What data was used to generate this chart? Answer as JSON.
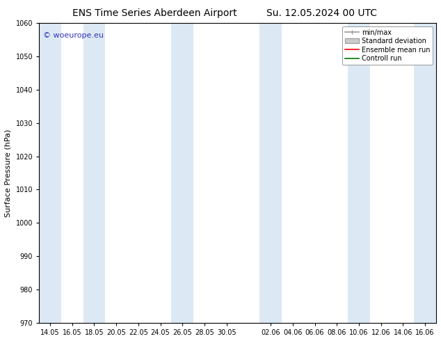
{
  "title_left": "ENS Time Series Aberdeen Airport",
  "title_right": "Su. 12.05.2024 00 UTC",
  "ylabel": "Surface Pressure (hPa)",
  "ylim": [
    970,
    1060
  ],
  "yticks": [
    970,
    980,
    990,
    1000,
    1010,
    1020,
    1030,
    1040,
    1050,
    1060
  ],
  "xtick_labels_may": [
    "14.05",
    "16.05",
    "18.05",
    "20.05",
    "22.05",
    "24.05",
    "26.05",
    "28.05",
    "30.05"
  ],
  "xtick_labels_jun": [
    "02.06",
    "04.06",
    "06.06",
    "08.06",
    "10.06",
    "12.06",
    "14.06",
    "16.06"
  ],
  "shaded_band_color": "#dce9f5",
  "watermark_text": "© woeurope.eu",
  "watermark_color": "#3333bb",
  "font_size_title": 10,
  "font_size_labels": 8,
  "font_size_ticks": 7,
  "font_size_watermark": 8,
  "font_size_legend": 7,
  "background_color": "#ffffff",
  "plot_bg_color": "#ffffff",
  "legend_gray_line": "#999999",
  "legend_gray_fill": "#cccccc",
  "legend_red": "#ff0000",
  "legend_green": "#007700"
}
